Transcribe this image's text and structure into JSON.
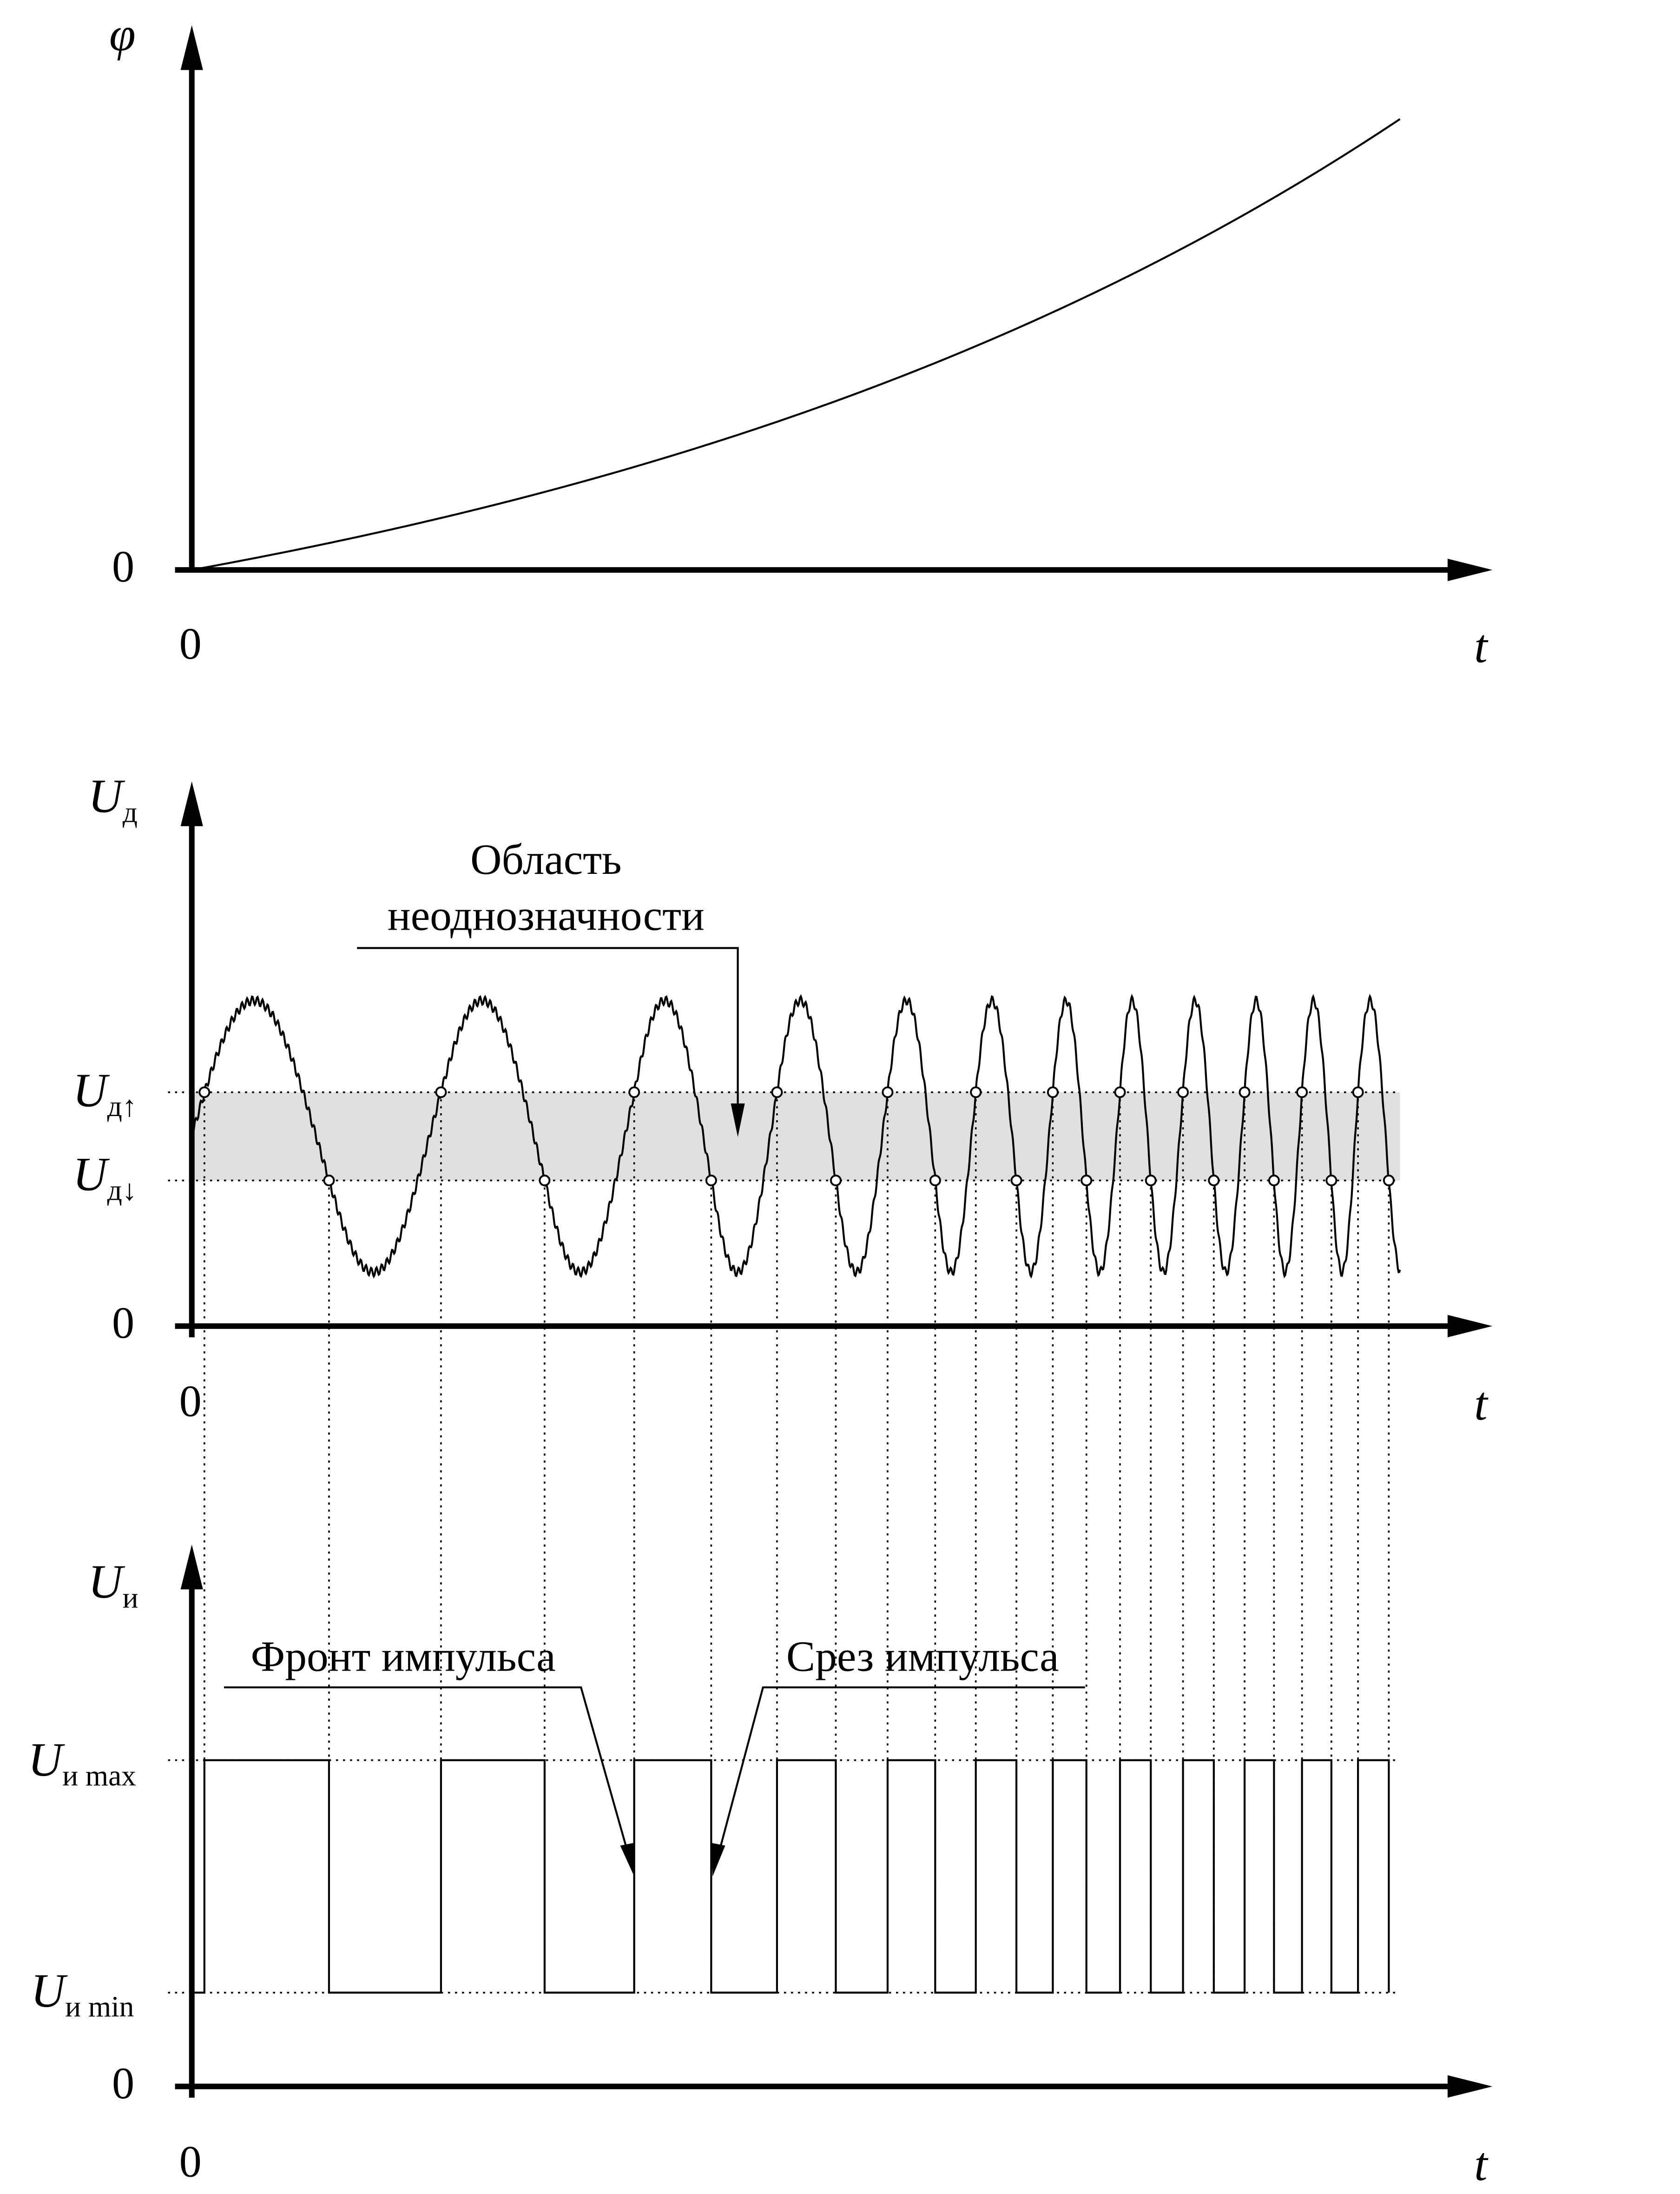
{
  "panels": [
    {
      "y_label": "φ",
      "y_zero": "0",
      "x_zero": "0",
      "x_label": "t"
    },
    {
      "y_label": {
        "symbol": "U",
        "subscript": "д"
      },
      "upper_level": {
        "symbol": "U",
        "subscript": "д↑"
      },
      "lower_level": {
        "symbol": "U",
        "subscript": "д↓"
      },
      "y_zero": "0",
      "x_zero": "0",
      "x_label": "t",
      "annotation": [
        "Область",
        "неоднозначности"
      ]
    },
    {
      "y_label": {
        "symbol": "U",
        "subscript": "и"
      },
      "max_level": {
        "symbol": "U",
        "subscript": "и max"
      },
      "min_level": {
        "symbol": "U",
        "subscript": "и min"
      },
      "y_zero": "0",
      "x_zero": "0",
      "x_label": "t",
      "front_label": "Фронт импульса",
      "cut_label": "Срез импульса"
    }
  ]
}
